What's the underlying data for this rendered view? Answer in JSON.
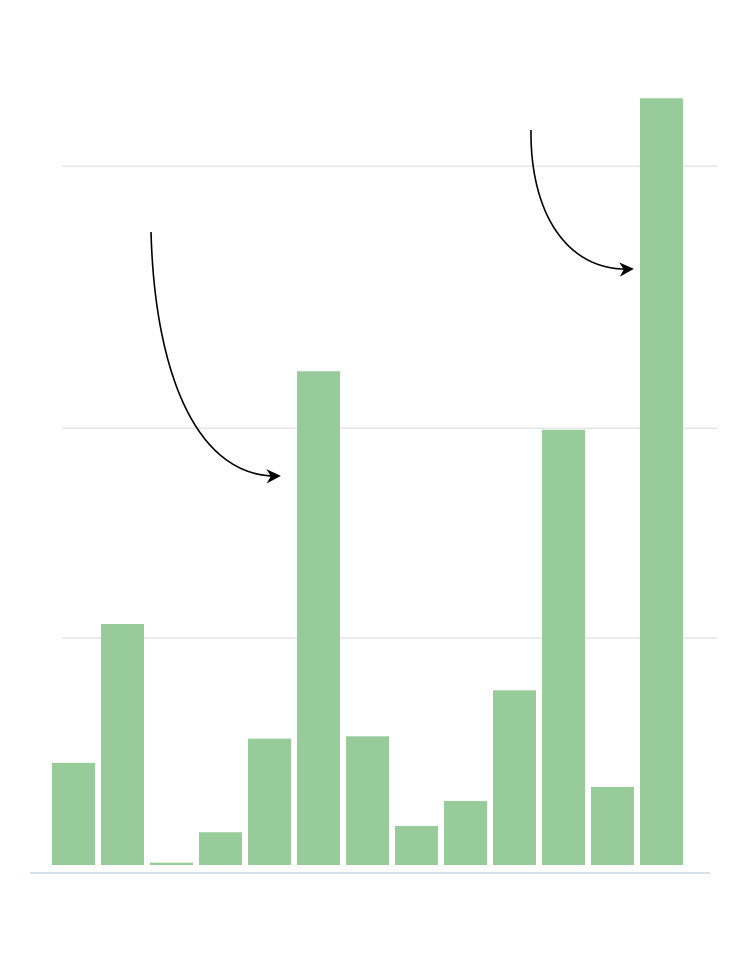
{
  "chart_data": {
    "type": "bar",
    "categories": [
      null,
      null,
      null,
      null,
      null,
      null,
      null,
      null,
      null,
      null,
      null,
      null,
      null
    ],
    "values": [
      13.1,
      30.9,
      0.3,
      4.2,
      16.2,
      63.3,
      16.5,
      5.0,
      8.2,
      22.4,
      55.8,
      10.0,
      98.3
    ],
    "color": "#97cb99",
    "ylim": [
      0,
      100
    ],
    "gridlines": [
      29.1,
      56.0,
      89.6
    ],
    "grid": true
  }
}
